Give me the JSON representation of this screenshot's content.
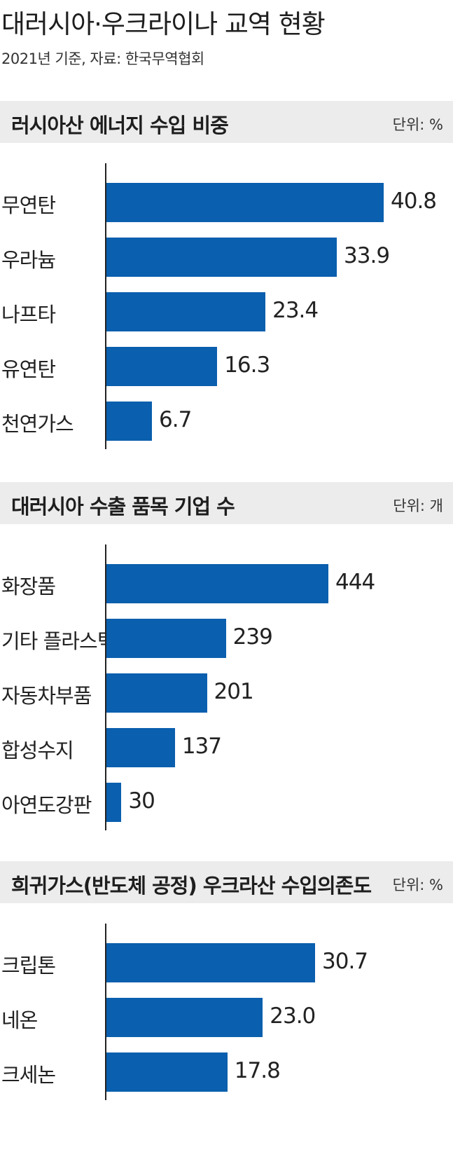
{
  "title": "대러시아·우크라이나 교역 현황",
  "subtitle": "2021년 기준, 자료: 한국무역협회",
  "chart_data": [
    {
      "type": "bar",
      "orientation": "horizontal",
      "title": "러시아산 에너지 수입 비중",
      "unit": "단위: %",
      "categories": [
        "무연탄",
        "우라늄",
        "나프타",
        "유연탄",
        "천연가스"
      ],
      "values": [
        40.8,
        33.9,
        23.4,
        16.3,
        6.7
      ],
      "value_labels": [
        "40.8",
        "33.9",
        "23.4",
        "16.3",
        "6.7"
      ],
      "color": "#0a5fae"
    },
    {
      "type": "bar",
      "orientation": "horizontal",
      "title": "대러시아 수출 품목 기업 수",
      "unit": "단위: 개",
      "categories": [
        "화장품",
        "기타 플라스틱",
        "자동차부품",
        "합성수지",
        "아연도강판"
      ],
      "values": [
        444,
        239,
        201,
        137,
        30
      ],
      "value_labels": [
        "444",
        "239",
        "201",
        "137",
        "30"
      ],
      "color": "#0a5fae"
    },
    {
      "type": "bar",
      "orientation": "horizontal",
      "title": "희귀가스(반도체 공정) 우크라산 수입의존도",
      "unit": "단위: %",
      "categories": [
        "크립톤",
        "네온",
        "크세논"
      ],
      "values": [
        30.7,
        23.0,
        17.8
      ],
      "value_labels": [
        "30.7",
        "23.0",
        "17.8"
      ],
      "color": "#0a5fae"
    }
  ]
}
